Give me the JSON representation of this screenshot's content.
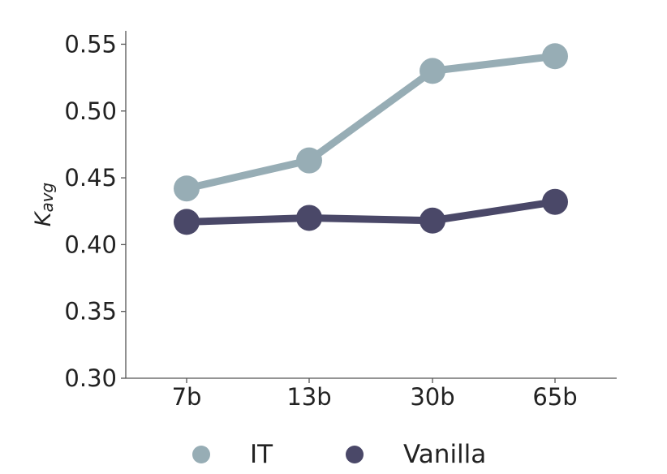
{
  "chart_data": {
    "type": "line",
    "title": "",
    "xlabel": "",
    "ylabel": {
      "main": "K",
      "sub": "avg"
    },
    "categories": [
      "7b",
      "13b",
      "30b",
      "65b"
    ],
    "ylim": [
      0.3,
      0.56
    ],
    "yticks": [
      0.3,
      0.35,
      0.4,
      0.45,
      0.5,
      0.55
    ],
    "ytick_labels": [
      "0.30",
      "0.35",
      "0.40",
      "0.45",
      "0.50",
      "0.55"
    ],
    "grid": false,
    "legend_position": "bottom-center",
    "series": [
      {
        "name": "IT",
        "color": "#97adb5",
        "values": [
          0.442,
          0.463,
          0.53,
          0.541
        ]
      },
      {
        "name": "Vanilla",
        "color": "#4a4868",
        "values": [
          0.417,
          0.42,
          0.418,
          0.432
        ]
      }
    ]
  }
}
